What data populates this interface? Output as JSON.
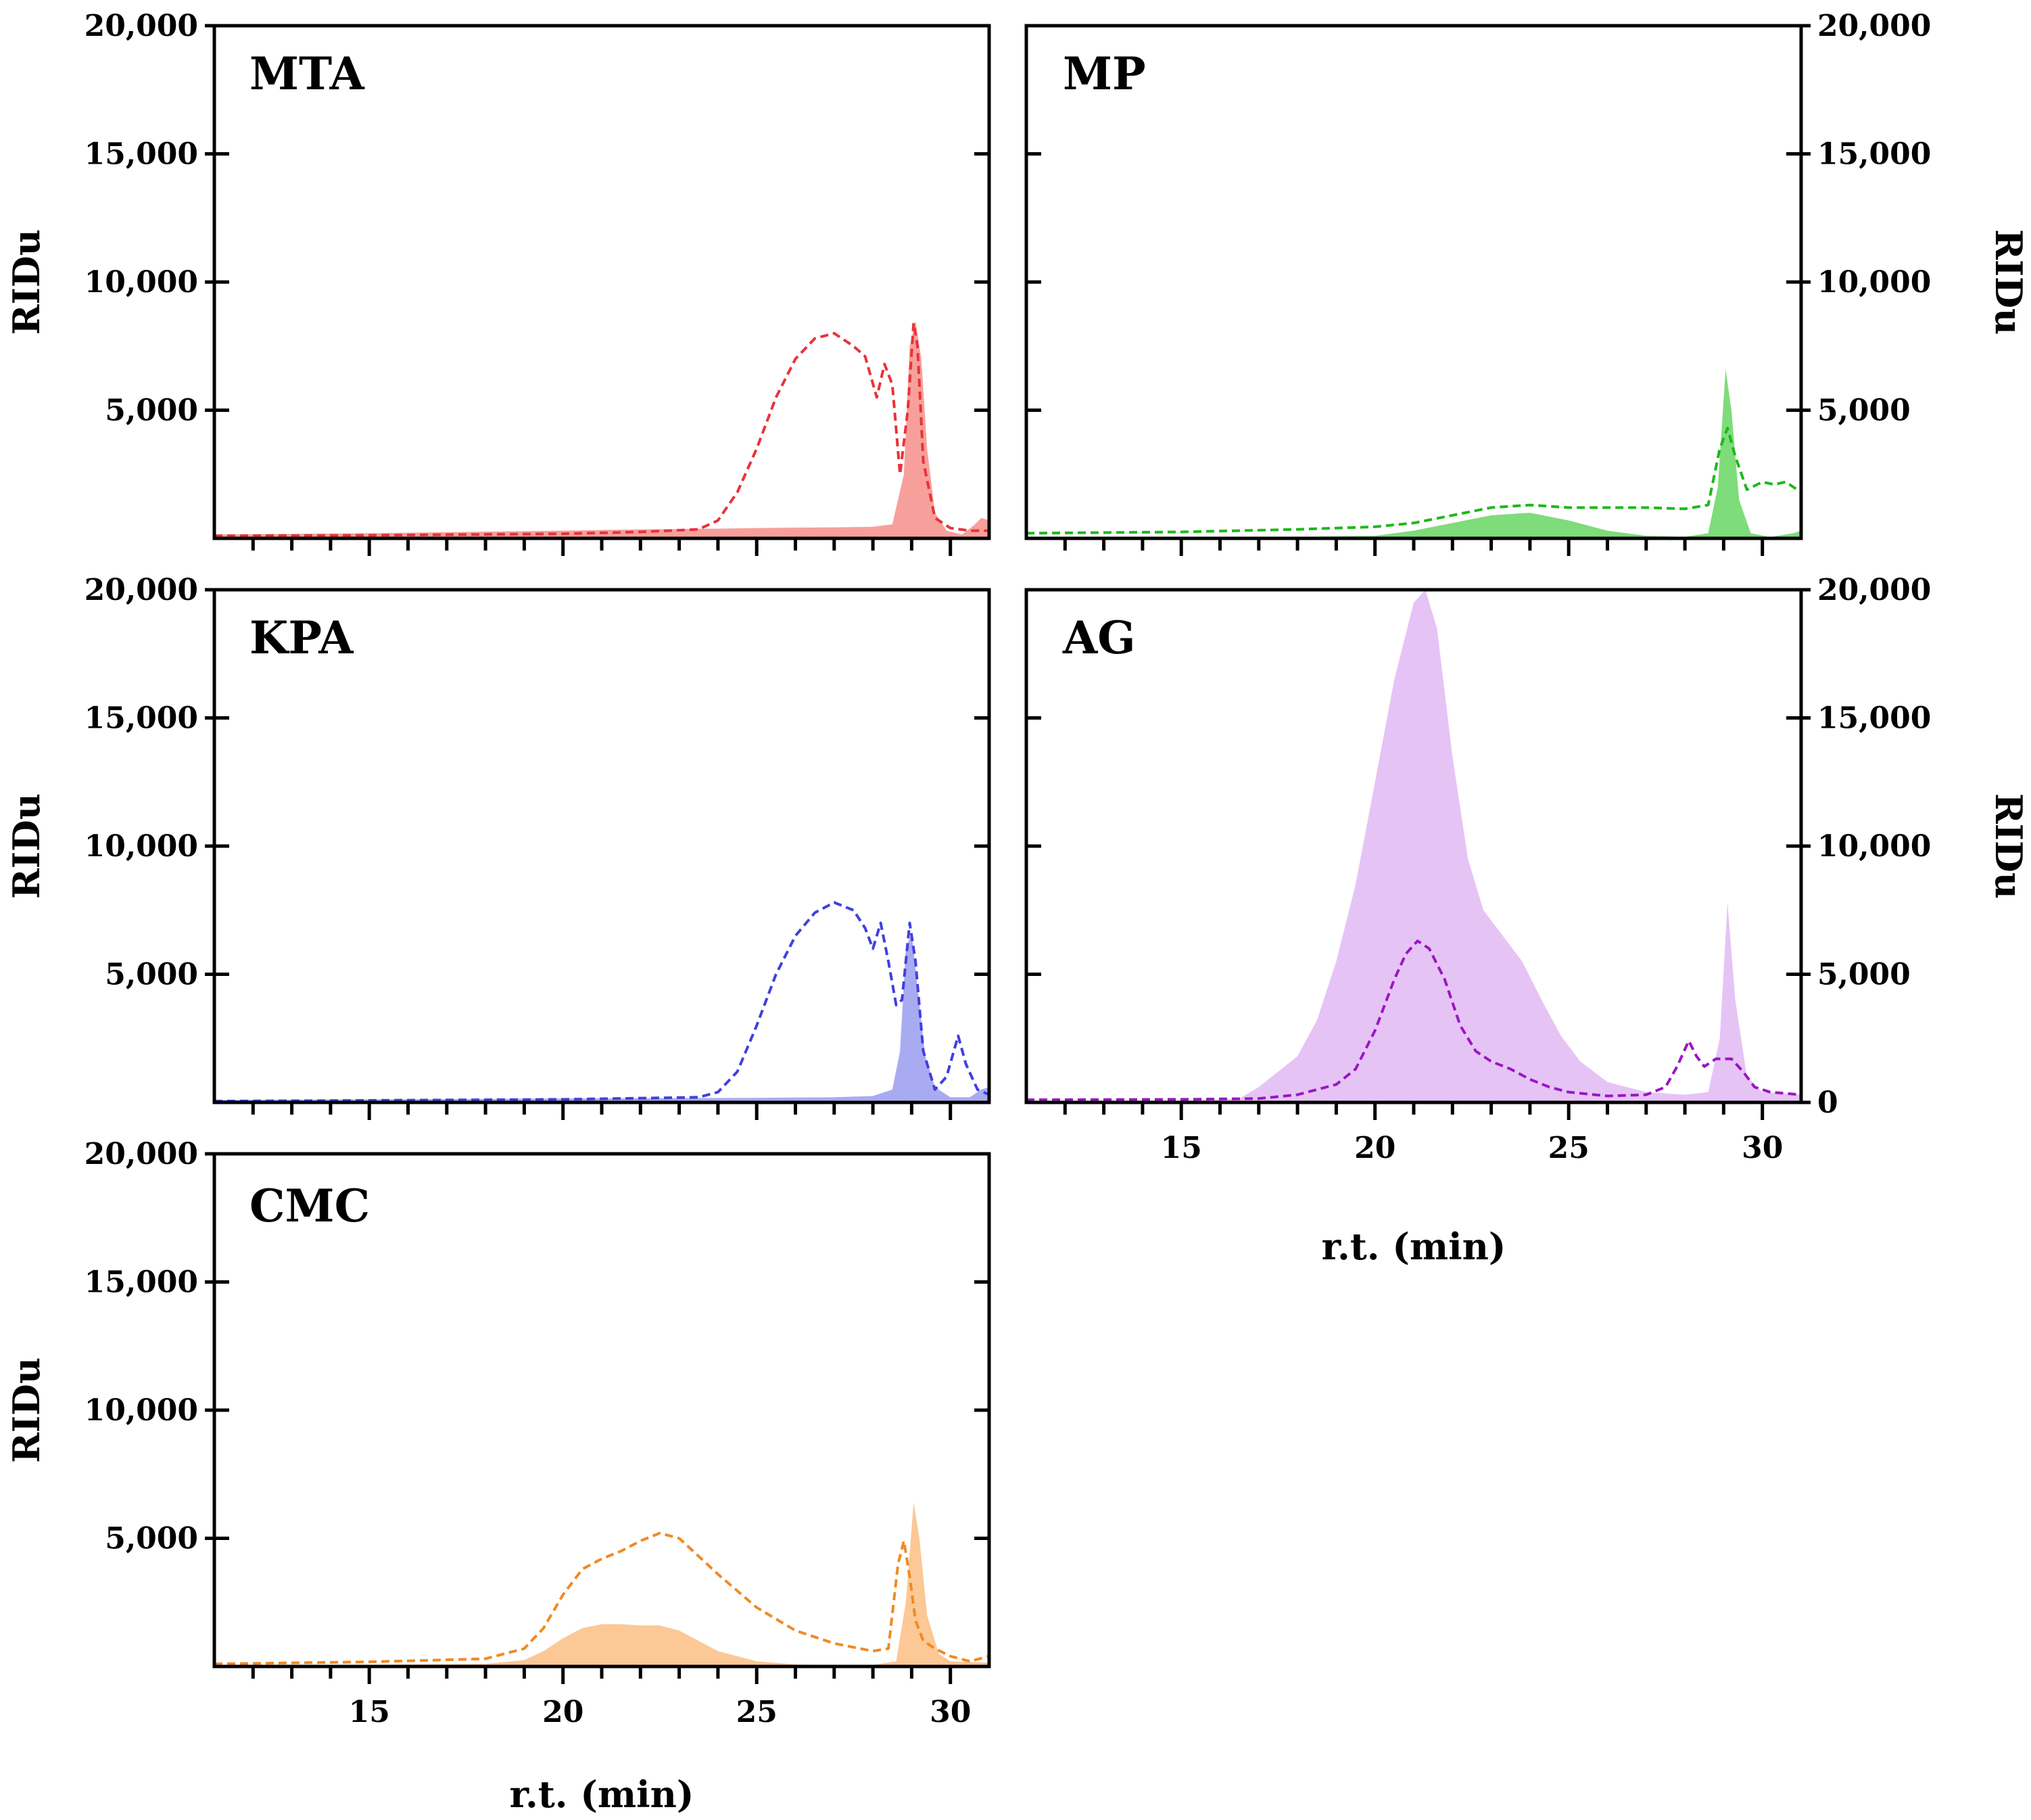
{
  "chart_data": [
    {
      "type": "area",
      "panel": "MTA",
      "title": "MTA",
      "xlabel": "",
      "ylabel": "RIDu",
      "xlim": [
        11,
        31
      ],
      "ylim": [
        0,
        20000
      ],
      "x_ticks": [],
      "y_ticks": [
        5000,
        10000,
        15000,
        20000
      ],
      "y_tick_labels": [
        "5,000",
        "10,000",
        "15,000",
        "20,000"
      ],
      "y_axis_side": "left",
      "colors": {
        "fill": "#f7a09b",
        "line": "#e8333a"
      },
      "series": [
        {
          "name": "filled",
          "style": "area",
          "x": [
            11,
            15,
            20,
            22,
            24,
            25,
            26,
            27,
            28,
            28.5,
            28.8,
            28.95,
            29.1,
            29.25,
            29.4,
            29.6,
            29.9,
            30.3,
            30.6,
            30.8,
            31
          ],
          "y": [
            150,
            200,
            300,
            350,
            380,
            400,
            420,
            430,
            450,
            550,
            2500,
            7500,
            8500,
            7000,
            3500,
            1000,
            300,
            150,
            500,
            800,
            700
          ]
        },
        {
          "name": "dashed",
          "style": "dashed",
          "x": [
            11,
            15,
            20,
            22,
            23.5,
            24,
            24.5,
            25,
            25.5,
            26,
            26.5,
            27,
            27.5,
            27.8,
            28.1,
            28.3,
            28.5,
            28.7,
            28.9,
            29.05,
            29.15,
            29.3,
            29.6,
            30,
            30.5,
            31
          ],
          "y": [
            100,
            120,
            180,
            250,
            350,
            700,
            1800,
            3500,
            5500,
            7000,
            7800,
            8000,
            7500,
            7100,
            5500,
            6800,
            6000,
            2500,
            5000,
            8400,
            7500,
            3000,
            800,
            400,
            300,
            300
          ]
        }
      ]
    },
    {
      "type": "area",
      "panel": "MP",
      "title": "MP",
      "xlabel": "",
      "ylabel": "RIDu",
      "xlim": [
        11,
        31
      ],
      "ylim": [
        0,
        20000
      ],
      "x_ticks": [],
      "y_ticks": [
        5000,
        10000,
        15000,
        20000
      ],
      "y_tick_labels": [
        "5,000",
        "10,000",
        "15,000",
        "20,000"
      ],
      "y_axis_side": "right",
      "colors": {
        "fill": "#7fdc7a",
        "line": "#1fb81b"
      },
      "series": [
        {
          "name": "filled",
          "style": "area",
          "x": [
            11,
            18,
            20,
            21,
            22,
            23,
            24,
            25,
            26,
            27,
            28,
            28.6,
            28.85,
            29.05,
            29.2,
            29.4,
            29.7,
            30.2,
            30.8,
            31
          ],
          "y": [
            50,
            60,
            100,
            300,
            600,
            900,
            1000,
            700,
            300,
            100,
            60,
            200,
            2000,
            6600,
            5000,
            1500,
            200,
            50,
            200,
            300
          ]
        },
        {
          "name": "dashed",
          "style": "dashed",
          "x": [
            11,
            15,
            18,
            20,
            21,
            22,
            23,
            24,
            25,
            26,
            27,
            28,
            28.6,
            28.9,
            29.1,
            29.3,
            29.6,
            30,
            30.3,
            30.6,
            31
          ],
          "y": [
            200,
            250,
            350,
            450,
            600,
            900,
            1200,
            1300,
            1200,
            1200,
            1200,
            1150,
            1300,
            3500,
            4300,
            3200,
            1900,
            2200,
            2100,
            2200,
            1800
          ]
        }
      ]
    },
    {
      "type": "area",
      "panel": "KPA",
      "title": "KPA",
      "xlabel": "",
      "ylabel": "RIDu",
      "xlim": [
        11,
        31
      ],
      "ylim": [
        0,
        20000
      ],
      "x_ticks": [],
      "y_ticks": [
        5000,
        10000,
        15000,
        20000
      ],
      "y_tick_labels": [
        "5,000",
        "10,000",
        "15,000",
        "20,000"
      ],
      "y_axis_side": "left",
      "colors": {
        "fill": "#a9abf2",
        "line": "#4040e0"
      },
      "series": [
        {
          "name": "filled",
          "style": "area",
          "x": [
            11,
            15,
            20,
            25,
            27,
            28,
            28.5,
            28.7,
            28.85,
            29,
            29.15,
            29.35,
            29.6,
            30,
            30.5,
            30.8,
            31
          ],
          "y": [
            100,
            120,
            150,
            180,
            200,
            250,
            500,
            2000,
            6000,
            6600,
            4500,
            1800,
            600,
            200,
            200,
            500,
            600
          ]
        },
        {
          "name": "dashed",
          "style": "dashed",
          "x": [
            11,
            15,
            20,
            23.5,
            24,
            24.5,
            25,
            25.5,
            26,
            26.5,
            27,
            27.5,
            27.8,
            28,
            28.2,
            28.4,
            28.6,
            28.75,
            28.95,
            29.1,
            29.3,
            29.6,
            29.9,
            30.2,
            30.4,
            30.7,
            31
          ],
          "y": [
            50,
            80,
            120,
            200,
            400,
            1200,
            3000,
            5000,
            6500,
            7400,
            7800,
            7500,
            6800,
            6000,
            7000,
            5500,
            3800,
            4000,
            7000,
            5500,
            2000,
            500,
            1000,
            2600,
            1500,
            500,
            300
          ]
        }
      ]
    },
    {
      "type": "area",
      "panel": "AG",
      "title": "AG",
      "xlabel": "r.t. (min)",
      "ylabel": "RIDu",
      "xlim": [
        11,
        31
      ],
      "ylim": [
        0,
        20000
      ],
      "x_ticks": [
        15,
        20,
        25,
        30
      ],
      "x_tick_labels": [
        "15",
        "20",
        "25",
        "30"
      ],
      "y_ticks": [
        0,
        5000,
        10000,
        15000,
        20000
      ],
      "y_tick_labels": [
        "0",
        "5,000",
        "10,000",
        "15,000",
        "20,000"
      ],
      "y_axis_side": "right",
      "colors": {
        "fill": "#e6c3f5",
        "line": "#9a16c4"
      },
      "series": [
        {
          "name": "filled",
          "style": "area",
          "x": [
            11,
            15,
            16.5,
            17,
            17.5,
            18,
            18.5,
            19,
            19.5,
            20,
            20.5,
            21,
            21.3,
            21.6,
            22,
            22.4,
            22.8,
            23.3,
            23.8,
            24.3,
            24.8,
            25.3,
            26,
            27,
            28,
            28.6,
            28.9,
            29.1,
            29.3,
            29.6,
            30,
            31
          ],
          "y": [
            0,
            50,
            150,
            600,
            1200,
            1800,
            3200,
            5500,
            8500,
            12500,
            16500,
            19500,
            20000,
            18500,
            13500,
            9500,
            7500,
            6500,
            5500,
            4000,
            2600,
            1600,
            800,
            400,
            300,
            400,
            2500,
            7800,
            4000,
            1000,
            400,
            300
          ]
        },
        {
          "name": "dashed",
          "style": "dashed",
          "x": [
            11,
            15,
            17,
            18,
            19,
            19.5,
            20,
            20.5,
            20.8,
            21.1,
            21.4,
            21.8,
            22.2,
            22.6,
            23,
            23.5,
            24,
            24.5,
            25,
            26,
            27,
            27.5,
            27.8,
            28.1,
            28.3,
            28.5,
            28.8,
            29.2,
            29.5,
            29.8,
            30.2,
            31
          ],
          "y": [
            100,
            120,
            150,
            300,
            700,
            1300,
            2800,
            4800,
            5800,
            6300,
            6000,
            4800,
            3000,
            2000,
            1600,
            1300,
            900,
            600,
            400,
            250,
            300,
            600,
            1400,
            2400,
            1800,
            1400,
            1700,
            1700,
            1200,
            600,
            400,
            300
          ]
        }
      ]
    },
    {
      "type": "area",
      "panel": "CMC",
      "title": "CMC",
      "xlabel": "r.t. (min)",
      "ylabel": "RIDu",
      "xlim": [
        11,
        31
      ],
      "ylim": [
        0,
        20000
      ],
      "x_ticks": [
        15,
        20,
        25,
        30
      ],
      "x_tick_labels": [
        "15",
        "20",
        "25",
        "30"
      ],
      "y_ticks": [
        5000,
        10000,
        15000,
        20000
      ],
      "y_tick_labels": [
        "5,000",
        "10,000",
        "15,000",
        "20,000"
      ],
      "y_axis_side": "left",
      "colors": {
        "fill": "#fbc896",
        "line": "#f08a24"
      },
      "series": [
        {
          "name": "filled",
          "style": "area",
          "x": [
            11,
            15,
            18,
            19,
            19.5,
            20,
            20.5,
            21,
            21.5,
            22,
            22.5,
            23,
            23.5,
            24,
            25,
            26,
            27,
            28,
            28.6,
            28.85,
            29.05,
            29.2,
            29.4,
            29.7,
            30,
            31
          ],
          "y": [
            50,
            60,
            100,
            250,
            600,
            1100,
            1500,
            1650,
            1650,
            1600,
            1600,
            1400,
            1000,
            600,
            200,
            80,
            50,
            60,
            200,
            2500,
            6400,
            5000,
            2000,
            500,
            200,
            150
          ]
        },
        {
          "name": "dashed",
          "style": "dashed",
          "x": [
            11,
            15,
            18,
            19,
            19.5,
            20,
            20.5,
            21,
            21.5,
            22,
            22.5,
            23,
            23.5,
            24,
            25,
            26,
            27,
            28,
            28.4,
            28.65,
            28.8,
            28.95,
            29.1,
            29.3,
            29.6,
            30,
            30.5,
            31
          ],
          "y": [
            100,
            180,
            300,
            700,
            1500,
            2800,
            3800,
            4200,
            4500,
            4900,
            5200,
            5000,
            4300,
            3600,
            2300,
            1400,
            900,
            600,
            700,
            4000,
            4900,
            3500,
            1800,
            1000,
            700,
            400,
            200,
            400
          ]
        }
      ]
    }
  ]
}
